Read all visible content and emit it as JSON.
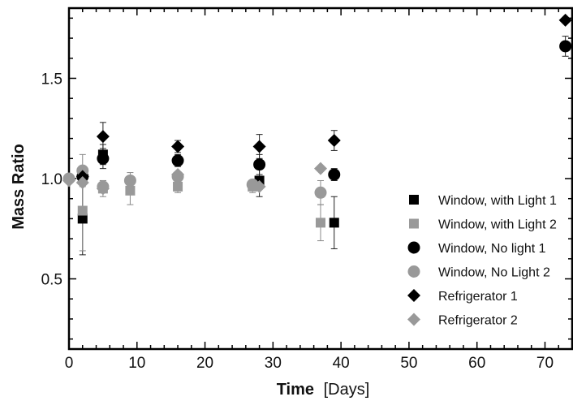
{
  "chart_data": {
    "type": "scatter",
    "xlabel": "Time",
    "xlabel_unit": "[Days]",
    "ylabel": "Mass Ratio",
    "xlim": [
      0,
      74
    ],
    "ylim": [
      0.15,
      1.85
    ],
    "x_ticks": [
      0,
      10,
      20,
      30,
      40,
      50,
      60,
      70
    ],
    "y_ticks": [
      0.5,
      1.0,
      1.5
    ],
    "y_tick_labels": [
      "0.5",
      "1.0",
      "1.5"
    ],
    "grid": false,
    "legend_position": "lower-right",
    "series": [
      {
        "name": "Window, with Light 1",
        "marker": "square",
        "color": "#000000",
        "x": [
          2,
          5,
          28,
          39
        ],
        "y": [
          0.8,
          1.12,
          0.99,
          0.78
        ],
        "err": [
          0.18,
          0.05,
          0.08,
          0.13
        ]
      },
      {
        "name": "Window, with Light 2",
        "marker": "square",
        "color": "#999999",
        "x": [
          2,
          5,
          9,
          16,
          27,
          37
        ],
        "y": [
          0.84,
          0.95,
          0.94,
          0.96,
          0.96,
          0.78
        ],
        "err": [
          0.2,
          0.04,
          0.07,
          0.03,
          0.03,
          0.09
        ]
      },
      {
        "name": "Window, No light 1",
        "marker": "circle",
        "color": "#000000",
        "x": [
          2,
          5,
          16,
          28,
          39,
          73
        ],
        "y": [
          1.01,
          1.1,
          1.09,
          1.07,
          1.02,
          1.66
        ],
        "err": [
          0.04,
          0.05,
          0.03,
          0.05,
          0.03,
          0.05
        ]
      },
      {
        "name": "Window, No Light 2",
        "marker": "circle",
        "color": "#999999",
        "x": [
          0,
          2,
          5,
          9,
          16,
          27,
          37
        ],
        "y": [
          1.0,
          1.04,
          0.96,
          0.99,
          1.01,
          0.97,
          0.93
        ],
        "err": [
          0.0,
          0.08,
          0.03,
          0.04,
          0.02,
          0.02,
          0.06
        ]
      },
      {
        "name": "Refrigerator 1",
        "marker": "diamond",
        "color": "#000000",
        "x": [
          2,
          5,
          16,
          28,
          39,
          73
        ],
        "y": [
          1.01,
          1.21,
          1.16,
          1.16,
          1.19,
          1.79
        ],
        "err": [
          0.0,
          0.07,
          0.03,
          0.06,
          0.05,
          0.0
        ]
      },
      {
        "name": "Refrigerator 2",
        "marker": "diamond",
        "color": "#999999",
        "x": [
          0,
          2,
          5,
          16,
          28,
          37
        ],
        "y": [
          0.99,
          0.98,
          0.95,
          1.02,
          0.96,
          1.05
        ],
        "err": [
          0.0,
          0.0,
          0.0,
          0.0,
          0.0,
          0.0
        ]
      }
    ]
  }
}
